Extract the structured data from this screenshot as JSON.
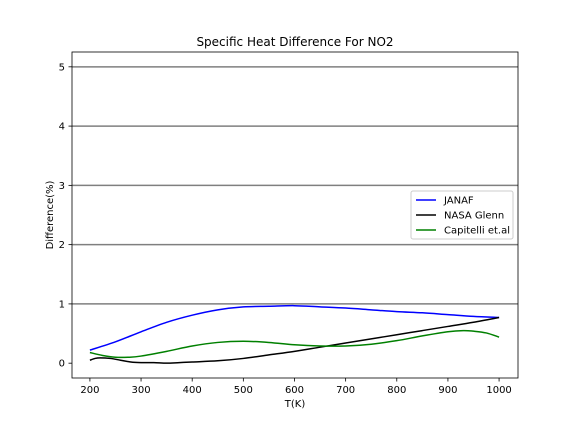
{
  "chart_data": {
    "type": "line",
    "title": "Specific Heat Difference For NO2",
    "xlabel": "T(K)",
    "ylabel": "Difference(%)",
    "xlim": [
      165,
      1037
    ],
    "ylim": [
      -0.25,
      5.25
    ],
    "xticks": [
      200,
      300,
      400,
      500,
      600,
      700,
      800,
      900,
      1000
    ],
    "yticks": [
      0,
      1,
      2,
      3,
      4,
      5
    ],
    "grid": "horizontal lines at y = 1, 2, 3, 4, 5",
    "legend": "center-right",
    "series": [
      {
        "name": "JANAF",
        "color": "#0000ff",
        "x": [
          200,
          250,
          300,
          350,
          400,
          450,
          500,
          550,
          600,
          650,
          700,
          750,
          800,
          850,
          900,
          950,
          1000
        ],
        "y": [
          0.22,
          0.36,
          0.53,
          0.69,
          0.81,
          0.9,
          0.95,
          0.96,
          0.97,
          0.95,
          0.93,
          0.9,
          0.87,
          0.85,
          0.82,
          0.79,
          0.77
        ]
      },
      {
        "name": "NASA Glenn",
        "color": "#000000",
        "x": [
          200,
          210,
          220,
          240,
          260,
          280,
          300,
          325,
          350,
          375,
          400,
          450,
          500,
          550,
          600,
          650,
          700,
          750,
          800,
          850,
          900,
          950,
          1000
        ],
        "y": [
          0.05,
          0.08,
          0.09,
          0.08,
          0.05,
          0.02,
          0.01,
          0.01,
          0.0,
          0.01,
          0.02,
          0.04,
          0.08,
          0.14,
          0.2,
          0.27,
          0.34,
          0.41,
          0.48,
          0.55,
          0.62,
          0.69,
          0.77
        ]
      },
      {
        "name": "Capitelli et.al",
        "color": "#008000",
        "x": [
          200,
          225,
          250,
          275,
          300,
          350,
          400,
          450,
          500,
          550,
          600,
          650,
          700,
          750,
          800,
          850,
          900,
          930,
          950,
          975,
          1000
        ],
        "y": [
          0.18,
          0.13,
          0.1,
          0.1,
          0.12,
          0.2,
          0.29,
          0.35,
          0.37,
          0.35,
          0.31,
          0.29,
          0.29,
          0.32,
          0.38,
          0.46,
          0.53,
          0.55,
          0.54,
          0.51,
          0.44
        ]
      }
    ]
  }
}
